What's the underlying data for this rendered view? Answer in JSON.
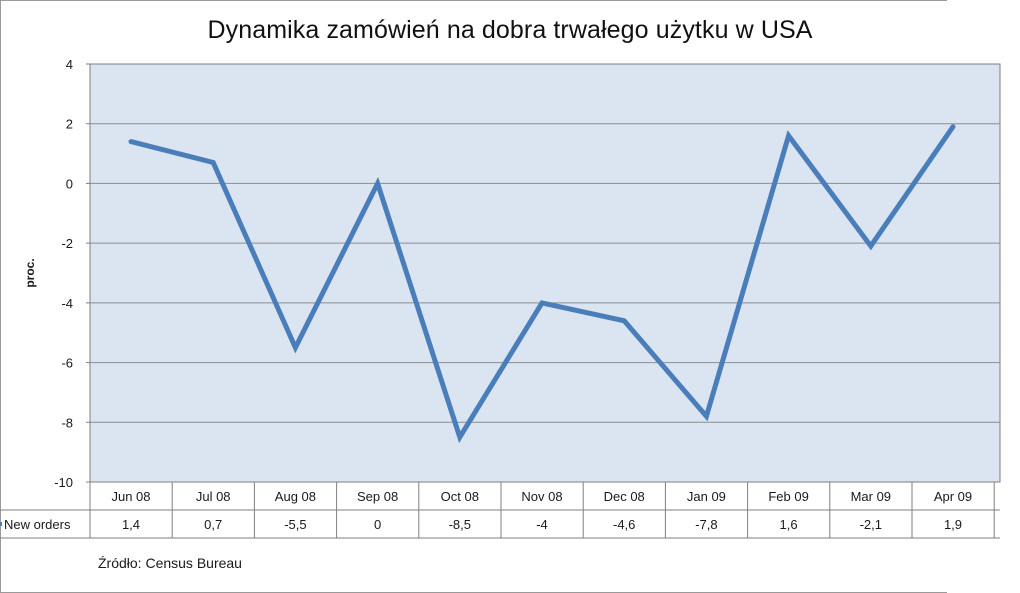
{
  "chart_data": {
    "type": "line",
    "title": "Dynamika zamówień na dobra trwałego użytku w USA",
    "ylabel": "proc.",
    "xlabel": "",
    "ylim": [
      -10,
      4
    ],
    "yticks": [
      4,
      2,
      0,
      -2,
      -4,
      -6,
      -8,
      -10
    ],
    "categories": [
      "Jun 08",
      "Jul 08",
      "Aug 08",
      "Sep 08",
      "Oct 08",
      "Nov 08",
      "Dec 08",
      "Jan 09",
      "Feb 09",
      "Mar 09",
      "Apr 09"
    ],
    "series": [
      {
        "name": "New orders",
        "values": [
          1.4,
          0.7,
          -5.5,
          0,
          -8.5,
          -4,
          -4.6,
          -7.8,
          1.6,
          -2.1,
          1.9
        ],
        "labels": [
          "1,4",
          "0,7",
          "-5,5",
          "0",
          "-8,5",
          "-4",
          "-4,6",
          "-7,8",
          "1,6",
          "-2,1",
          "1,9"
        ],
        "color": "#4a7ebb"
      }
    ],
    "grid": true,
    "data_table": true,
    "legend": "data-table-row"
  },
  "footer": {
    "source": "Źródło:  Census Bureau"
  },
  "colors": {
    "plot_background": "#dbe5f1",
    "grid": "#8c8c8c",
    "line": "#4a7ebb",
    "text": "#1a1a1a"
  }
}
